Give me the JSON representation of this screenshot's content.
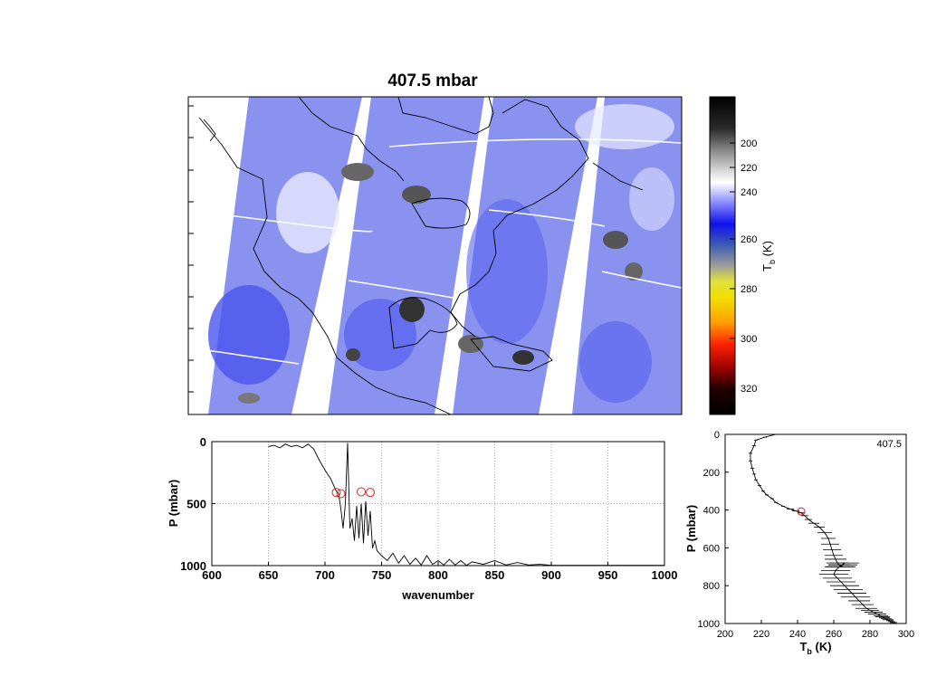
{
  "map": {
    "title": "407.5 mbar",
    "colorbar": {
      "label": "T",
      "label_sub": "b",
      "unit": "(K)",
      "ticks": [
        "200",
        "220",
        "240",
        "260",
        "280",
        "300",
        "320"
      ]
    }
  },
  "chart_data": [
    {
      "type": "line",
      "xlabel": "wavenumber",
      "ylabel": "P (mbar)",
      "xlim": [
        600,
        1000
      ],
      "ylim": [
        1000,
        0
      ],
      "xticks": [
        600,
        650,
        700,
        750,
        800,
        850,
        900,
        950,
        1000
      ],
      "yticks": [
        0,
        500,
        1000
      ],
      "grid": true,
      "series": [
        {
          "x": [
            650,
            655,
            660,
            665,
            670,
            675,
            680,
            685,
            690,
            695,
            700,
            705,
            708,
            710,
            712,
            714,
            716,
            718,
            720,
            722,
            724,
            726,
            728,
            730,
            732,
            734,
            736,
            738,
            740,
            742,
            744,
            746,
            748,
            750,
            755,
            760,
            765,
            770,
            775,
            780,
            785,
            790,
            795,
            800,
            805,
            810,
            815,
            820,
            825,
            830,
            840,
            850,
            860,
            870,
            880,
            890,
            900,
            920,
            950,
            1000
          ],
          "y": [
            40,
            30,
            50,
            20,
            40,
            30,
            50,
            20,
            60,
            150,
            230,
            300,
            360,
            400,
            420,
            540,
            700,
            500,
            10,
            700,
            620,
            800,
            520,
            780,
            500,
            820,
            480,
            760,
            560,
            860,
            800,
            880,
            900,
            920,
            960,
            900,
            980,
            920,
            990,
            940,
            995,
            920,
            990,
            960,
            995,
            950,
            995,
            960,
            998,
            970,
            990,
            960,
            995,
            975,
            995,
            990,
            998,
            998,
            998,
            998
          ]
        }
      ],
      "markers": {
        "x": [
          710,
          714,
          732,
          740
        ],
        "y": [
          410,
          420,
          405,
          410
        ],
        "color": "#e02020"
      }
    },
    {
      "type": "line",
      "xlabel": "T_b (K)",
      "ylabel": "P (mbar)",
      "annotation": "407.5",
      "xlim": [
        200,
        300
      ],
      "ylim": [
        1000,
        0
      ],
      "xticks": [
        200,
        220,
        240,
        260,
        280,
        300
      ],
      "yticks": [
        0,
        200,
        400,
        600,
        800,
        1000
      ],
      "series": [
        {
          "x": [
            228,
            222,
            217,
            216,
            214,
            214,
            215,
            216,
            217,
            219,
            221,
            223,
            226,
            228,
            232,
            236,
            239,
            242,
            244,
            246,
            249,
            252,
            255,
            257,
            258,
            259,
            260,
            261,
            262,
            263,
            264,
            265,
            266,
            263,
            261,
            260,
            262,
            264,
            266,
            268,
            270,
            272,
            274,
            276,
            278,
            280,
            282,
            284,
            286,
            287,
            288,
            289,
            290,
            291,
            292,
            293,
            294
          ],
          "y": [
            0,
            15,
            30,
            60,
            100,
            140,
            180,
            210,
            240,
            270,
            300,
            320,
            340,
            360,
            380,
            395,
            405,
            415,
            430,
            450,
            470,
            490,
            520,
            550,
            580,
            610,
            640,
            660,
            680,
            690,
            700,
            690,
            680,
            700,
            720,
            740,
            760,
            780,
            800,
            820,
            840,
            860,
            880,
            900,
            920,
            930,
            940,
            950,
            960,
            965,
            970,
            975,
            980,
            985,
            990,
            995,
            1000
          ]
        }
      ],
      "errorbar_half_widths": [
        1,
        1,
        1,
        1,
        1,
        1,
        1,
        1,
        1,
        1,
        1,
        1,
        1,
        1,
        1,
        2,
        2,
        2,
        2,
        2,
        3,
        3,
        4,
        4,
        5,
        5,
        5,
        6,
        6,
        6,
        8,
        8,
        8,
        8,
        8,
        8,
        8,
        8,
        8,
        8,
        8,
        8,
        6,
        6,
        6,
        5,
        5,
        5,
        4,
        4,
        3,
        3,
        3,
        2,
        2,
        2,
        2
      ],
      "marker": {
        "x": 242,
        "y": 407.5,
        "color": "#e02020"
      }
    }
  ]
}
